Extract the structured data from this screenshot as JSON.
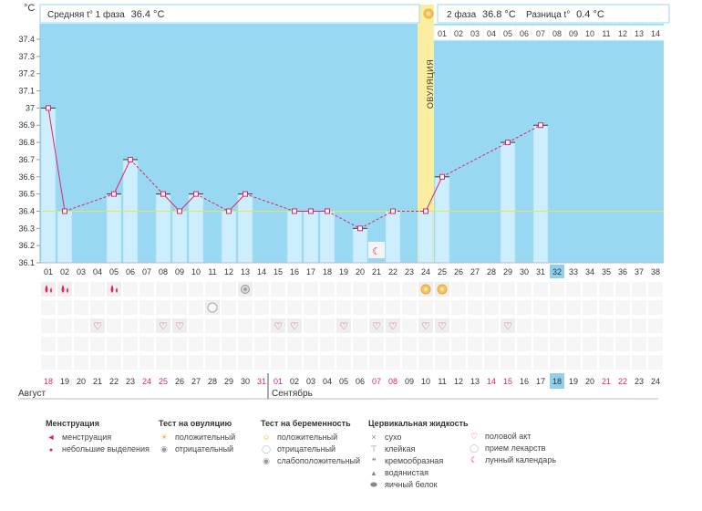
{
  "chart_data": {
    "type": "line",
    "title": "",
    "ylabel": "°C",
    "unit": "°C",
    "ylim": [
      36.1,
      37.4
    ],
    "ytick_labels": [
      "36.1",
      "36.2",
      "36.3",
      "36.4",
      "36.5",
      "36.6",
      "36.7",
      "36.8",
      "36.9",
      "37",
      "37.1",
      "37.2",
      "37.3",
      "37.4"
    ],
    "ytick_values": [
      36.1,
      36.2,
      36.3,
      36.4,
      36.5,
      36.6,
      36.7,
      36.8,
      36.9,
      37.0,
      37.1,
      37.2,
      37.3,
      37.4
    ],
    "cycle_days": [
      "01",
      "02",
      "03",
      "04",
      "05",
      "06",
      "07",
      "08",
      "09",
      "10",
      "11",
      "12",
      "13",
      "14",
      "15",
      "16",
      "17",
      "18",
      "19",
      "20",
      "21",
      "22",
      "23",
      "24",
      "25",
      "26",
      "27",
      "28",
      "29",
      "30",
      "31",
      "32",
      "33",
      "34",
      "35",
      "36",
      "37",
      "38"
    ],
    "dates": [
      "18",
      "19",
      "20",
      "21",
      "22",
      "23",
      "24",
      "25",
      "26",
      "27",
      "28",
      "29",
      "30",
      "31",
      "01",
      "02",
      "03",
      "04",
      "05",
      "06",
      "07",
      "08",
      "09",
      "10",
      "11",
      "12",
      "13",
      "14",
      "15",
      "16",
      "17",
      "18",
      "19",
      "20",
      "21",
      "22",
      "23",
      "24"
    ],
    "red_dates": [
      0,
      6,
      7,
      13,
      14,
      20,
      21,
      27,
      28,
      34,
      35
    ],
    "today_index": 31,
    "months": [
      {
        "label": "Август",
        "start": 0
      },
      {
        "label": "Сентябрь",
        "start": 14
      }
    ],
    "ovulation_index": 23,
    "ovulation_label": "ОВУЛЯЦИЯ",
    "coverline": 36.4,
    "top_phase_days": [
      "01",
      "02",
      "03",
      "04",
      "05",
      "06",
      "07",
      "08",
      "09",
      "10",
      "11",
      "12",
      "13",
      "14"
    ],
    "phase1_label": "Средняя t° 1 фаза",
    "phase1_value": "36.4 °C",
    "phase2_label": "2 фаза",
    "phase2_value": "36.8 °C",
    "diff_label": "Разница t°",
    "diff_value": "0.4 °C",
    "points": [
      {
        "i": 0,
        "t": 37.0
      },
      {
        "i": 1,
        "t": 36.4
      },
      {
        "i": 4,
        "t": 36.5
      },
      {
        "i": 5,
        "t": 36.7
      },
      {
        "i": 7,
        "t": 36.5
      },
      {
        "i": 8,
        "t": 36.4
      },
      {
        "i": 9,
        "t": 36.5
      },
      {
        "i": 11,
        "t": 36.4
      },
      {
        "i": 12,
        "t": 36.5
      },
      {
        "i": 15,
        "t": 36.4
      },
      {
        "i": 16,
        "t": 36.4
      },
      {
        "i": 17,
        "t": 36.4
      },
      {
        "i": 19,
        "t": 36.3
      },
      {
        "i": 21,
        "t": 36.4
      },
      {
        "i": 23,
        "t": 36.4
      },
      {
        "i": 24,
        "t": 36.6
      },
      {
        "i": 28,
        "t": 36.8
      },
      {
        "i": 30,
        "t": 36.9
      }
    ],
    "moon_index": 20,
    "symptoms": {
      "menstruation": [
        0,
        1,
        4
      ],
      "ovulation_test": [
        {
          "i": 12,
          "kind": "negative"
        },
        {
          "i": 23,
          "kind": "positive"
        },
        {
          "i": 24,
          "kind": "positive"
        }
      ],
      "pregnancy_test": [
        {
          "i": 10,
          "kind": "negative"
        }
      ],
      "sex": [
        3,
        7,
        8,
        14,
        15,
        18,
        20,
        21,
        23,
        24,
        28
      ]
    }
  },
  "legend": {
    "menstruation": {
      "title": "Менструация",
      "items": [
        "менструация",
        "небольшие выделения"
      ]
    },
    "ovulation_test": {
      "title": "Тест на овуляцию",
      "items": [
        "положительный",
        "отрицательный"
      ]
    },
    "pregnancy_test": {
      "title": "Тест на беременность",
      "items": [
        "положительный",
        "отрицательный",
        "слабоположительный"
      ]
    },
    "cervical": {
      "title": "Цервикальная жидкость",
      "items": [
        "сухо",
        "клейкая",
        "кремообразная",
        "водянистая",
        "яичный белок"
      ]
    },
    "other": {
      "items": [
        "половой акт",
        "прием лекарств",
        "лунный календарь"
      ]
    }
  },
  "colors": {
    "sky": "#99d8f3",
    "bar": "#cdeefc",
    "bar_edge": "#a9dcf2",
    "line": "#e0246a",
    "ovulation": "#fbeea0",
    "coverline": "#dde85a",
    "today": "#8fd0ee",
    "red": "#e0246a",
    "grid_cell": "#f6f6f6",
    "grey": "#555555"
  }
}
